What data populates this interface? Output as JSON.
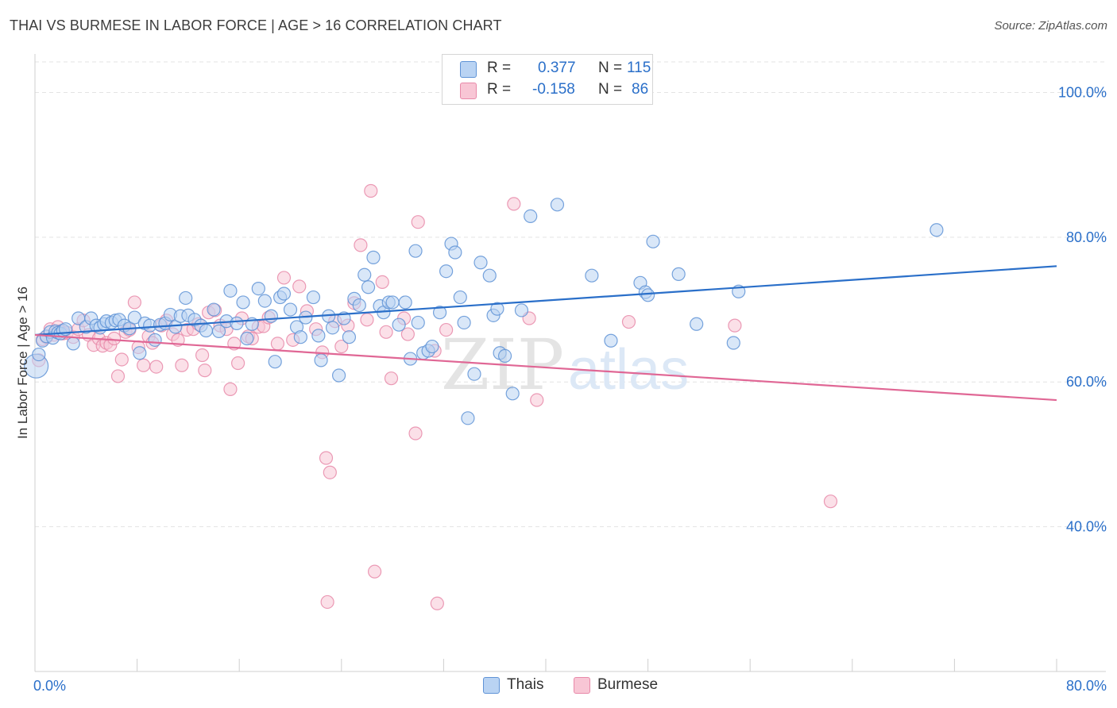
{
  "title": "THAI VS BURMESE IN LABOR FORCE | AGE > 16 CORRELATION CHART",
  "source": "Source: ZipAtlas.com",
  "watermark": {
    "zip": "ZIP",
    "atlas": "atlas"
  },
  "colors": {
    "thai_fill": "#b9d3f3",
    "thai_stroke": "#5f93d6",
    "thai_line": "#2a6fc9",
    "burmese_fill": "#f8c6d5",
    "burmese_stroke": "#e889a9",
    "burmese_line": "#e06795",
    "tick_text": "#2a6fc9",
    "grid": "#e3e3e3"
  },
  "legend": {
    "r_label": "R =",
    "n_label": "N =",
    "thai": {
      "r": "0.377",
      "n": "115"
    },
    "burmese": {
      "r": "-0.158",
      "n": "86"
    }
  },
  "bottom_legend": {
    "thai": "Thais",
    "burmese": "Burmese"
  },
  "chart_data": {
    "type": "scatter",
    "title": "THAI VS BURMESE IN LABOR FORCE | AGE > 16 CORRELATION CHART",
    "xlabel": "",
    "ylabel": "In Labor Force | Age > 16",
    "xlim": [
      0,
      80
    ],
    "ylim": [
      20,
      104
    ],
    "x_tick_labels": [
      {
        "value": 0,
        "label": "0.0%"
      },
      {
        "value": 80,
        "label": "80.0%"
      }
    ],
    "y_tick_labels": [
      {
        "value": 100,
        "label": "100.0%"
      },
      {
        "value": 80,
        "label": "80.0%"
      },
      {
        "value": 60,
        "label": "60.0%"
      },
      {
        "value": 40,
        "label": "40.0%"
      }
    ],
    "grid": "horizontal dashed",
    "legend_position": "top-center",
    "series": [
      {
        "name": "Thais",
        "trend": [
          [
            0,
            66.5
          ],
          [
            80,
            76.0
          ]
        ],
        "points": [
          [
            0.1,
            62.2
          ],
          [
            0.3,
            63.8
          ],
          [
            0.6,
            65.7
          ],
          [
            0.9,
            66.3
          ],
          [
            1.2,
            66.9
          ],
          [
            1.4,
            66.1
          ],
          [
            1.6,
            67.0
          ],
          [
            1.8,
            66.8
          ],
          [
            2.0,
            66.7
          ],
          [
            2.2,
            67.1
          ],
          [
            2.4,
            67.3
          ],
          [
            3.0,
            65.3
          ],
          [
            3.4,
            68.8
          ],
          [
            4.0,
            67.6
          ],
          [
            4.4,
            68.8
          ],
          [
            4.8,
            67.8
          ],
          [
            5.1,
            67.5
          ],
          [
            5.4,
            68.0
          ],
          [
            5.6,
            68.4
          ],
          [
            6.0,
            68.2
          ],
          [
            6.3,
            68.5
          ],
          [
            6.6,
            68.6
          ],
          [
            7.0,
            67.8
          ],
          [
            7.4,
            67.4
          ],
          [
            7.8,
            68.9
          ],
          [
            8.2,
            64.0
          ],
          [
            8.6,
            68.1
          ],
          [
            9.0,
            67.8
          ],
          [
            9.4,
            65.8
          ],
          [
            9.8,
            67.9
          ],
          [
            10.2,
            68.1
          ],
          [
            10.6,
            69.3
          ],
          [
            11.0,
            67.6
          ],
          [
            11.4,
            69.1
          ],
          [
            11.8,
            71.6
          ],
          [
            12.0,
            69.2
          ],
          [
            12.5,
            68.6
          ],
          [
            13.0,
            67.8
          ],
          [
            13.4,
            67.1
          ],
          [
            14.0,
            70.0
          ],
          [
            14.4,
            67.0
          ],
          [
            15.0,
            68.4
          ],
          [
            15.3,
            72.6
          ],
          [
            15.8,
            68.1
          ],
          [
            16.3,
            71.0
          ],
          [
            16.6,
            66.0
          ],
          [
            17.0,
            68.0
          ],
          [
            17.5,
            72.9
          ],
          [
            18.0,
            71.2
          ],
          [
            18.5,
            69.1
          ],
          [
            18.8,
            62.8
          ],
          [
            19.2,
            71.7
          ],
          [
            19.5,
            72.2
          ],
          [
            20.0,
            70.0
          ],
          [
            20.5,
            67.6
          ],
          [
            20.8,
            66.2
          ],
          [
            21.2,
            68.9
          ],
          [
            21.8,
            71.7
          ],
          [
            22.2,
            66.4
          ],
          [
            22.4,
            63.0
          ],
          [
            23.0,
            69.1
          ],
          [
            23.3,
            67.5
          ],
          [
            23.8,
            60.9
          ],
          [
            24.2,
            68.8
          ],
          [
            24.6,
            66.2
          ],
          [
            25.0,
            71.5
          ],
          [
            25.4,
            70.6
          ],
          [
            25.8,
            74.8
          ],
          [
            26.1,
            73.1
          ],
          [
            26.5,
            77.2
          ],
          [
            27.0,
            70.5
          ],
          [
            27.3,
            69.6
          ],
          [
            27.7,
            71.0
          ],
          [
            28.0,
            71.0
          ],
          [
            28.5,
            67.9
          ],
          [
            29.0,
            71.0
          ],
          [
            29.4,
            63.2
          ],
          [
            29.8,
            78.1
          ],
          [
            30.0,
            68.2
          ],
          [
            30.4,
            64.0
          ],
          [
            30.8,
            64.3
          ],
          [
            31.1,
            64.9
          ],
          [
            31.7,
            69.6
          ],
          [
            32.2,
            75.3
          ],
          [
            32.6,
            79.1
          ],
          [
            32.9,
            77.9
          ],
          [
            33.3,
            71.7
          ],
          [
            33.6,
            68.2
          ],
          [
            33.9,
            55.0
          ],
          [
            34.4,
            61.1
          ],
          [
            34.9,
            76.5
          ],
          [
            35.6,
            74.7
          ],
          [
            35.9,
            69.2
          ],
          [
            36.2,
            70.1
          ],
          [
            36.4,
            64.0
          ],
          [
            36.8,
            63.6
          ],
          [
            37.4,
            58.4
          ],
          [
            38.1,
            69.9
          ],
          [
            38.8,
            82.9
          ],
          [
            40.9,
            84.5
          ],
          [
            43.6,
            74.7
          ],
          [
            45.1,
            65.7
          ],
          [
            47.4,
            73.7
          ],
          [
            47.8,
            72.4
          ],
          [
            48.0,
            72.0
          ],
          [
            48.4,
            79.4
          ],
          [
            50.4,
            74.9
          ],
          [
            51.8,
            68.0
          ],
          [
            54.7,
            65.4
          ],
          [
            55.1,
            72.5
          ],
          [
            70.6,
            81.0
          ]
        ]
      },
      {
        "name": "Burmese",
        "trend": [
          [
            0,
            66.5
          ],
          [
            80,
            57.5
          ]
        ],
        "points": [
          [
            0.3,
            63.0
          ],
          [
            0.6,
            65.9
          ],
          [
            0.9,
            66.2
          ],
          [
            1.2,
            67.3
          ],
          [
            1.5,
            66.5
          ],
          [
            1.8,
            67.6
          ],
          [
            2.0,
            67.0
          ],
          [
            2.2,
            66.7
          ],
          [
            2.5,
            66.8
          ],
          [
            3.0,
            66.2
          ],
          [
            3.4,
            67.3
          ],
          [
            3.8,
            68.5
          ],
          [
            4.2,
            66.5
          ],
          [
            4.6,
            65.1
          ],
          [
            5.0,
            66.0
          ],
          [
            5.3,
            65.0
          ],
          [
            5.6,
            65.4
          ],
          [
            5.9,
            65.1
          ],
          [
            6.2,
            66.0
          ],
          [
            6.5,
            60.8
          ],
          [
            6.8,
            63.1
          ],
          [
            7.1,
            66.9
          ],
          [
            7.4,
            67.2
          ],
          [
            7.8,
            71.0
          ],
          [
            8.1,
            64.8
          ],
          [
            8.5,
            62.3
          ],
          [
            8.9,
            66.3
          ],
          [
            9.2,
            65.4
          ],
          [
            9.5,
            62.1
          ],
          [
            9.9,
            67.8
          ],
          [
            10.3,
            68.5
          ],
          [
            10.8,
            66.6
          ],
          [
            11.2,
            65.8
          ],
          [
            11.5,
            62.3
          ],
          [
            11.9,
            67.2
          ],
          [
            12.4,
            67.3
          ],
          [
            12.8,
            68.0
          ],
          [
            13.1,
            63.7
          ],
          [
            13.3,
            61.6
          ],
          [
            13.6,
            69.6
          ],
          [
            14.1,
            69.9
          ],
          [
            14.5,
            67.8
          ],
          [
            15.0,
            67.3
          ],
          [
            15.3,
            59.0
          ],
          [
            15.6,
            65.3
          ],
          [
            15.9,
            62.6
          ],
          [
            16.2,
            68.8
          ],
          [
            16.7,
            66.3
          ],
          [
            17.0,
            66.0
          ],
          [
            17.5,
            67.6
          ],
          [
            17.9,
            67.7
          ],
          [
            18.3,
            68.9
          ],
          [
            19.0,
            65.3
          ],
          [
            19.5,
            74.4
          ],
          [
            20.2,
            65.8
          ],
          [
            20.7,
            73.2
          ],
          [
            21.3,
            69.8
          ],
          [
            22.0,
            67.3
          ],
          [
            22.5,
            64.1
          ],
          [
            22.8,
            49.5
          ],
          [
            23.1,
            47.5
          ],
          [
            23.5,
            68.4
          ],
          [
            24.0,
            64.9
          ],
          [
            24.5,
            67.8
          ],
          [
            25.0,
            70.9
          ],
          [
            25.5,
            78.9
          ],
          [
            26.0,
            68.6
          ],
          [
            26.3,
            86.4
          ],
          [
            26.6,
            33.8
          ],
          [
            27.2,
            73.8
          ],
          [
            27.5,
            66.9
          ],
          [
            27.9,
            60.5
          ],
          [
            28.9,
            68.8
          ],
          [
            29.2,
            66.6
          ],
          [
            29.8,
            52.9
          ],
          [
            30.0,
            82.1
          ],
          [
            31.3,
            64.3
          ],
          [
            31.5,
            29.4
          ],
          [
            32.2,
            67.2
          ],
          [
            37.5,
            84.6
          ],
          [
            38.7,
            68.8
          ],
          [
            39.3,
            57.5
          ],
          [
            46.5,
            68.3
          ],
          [
            54.8,
            67.8
          ],
          [
            62.3,
            43.5
          ],
          [
            22.9,
            29.6
          ]
        ]
      }
    ]
  }
}
